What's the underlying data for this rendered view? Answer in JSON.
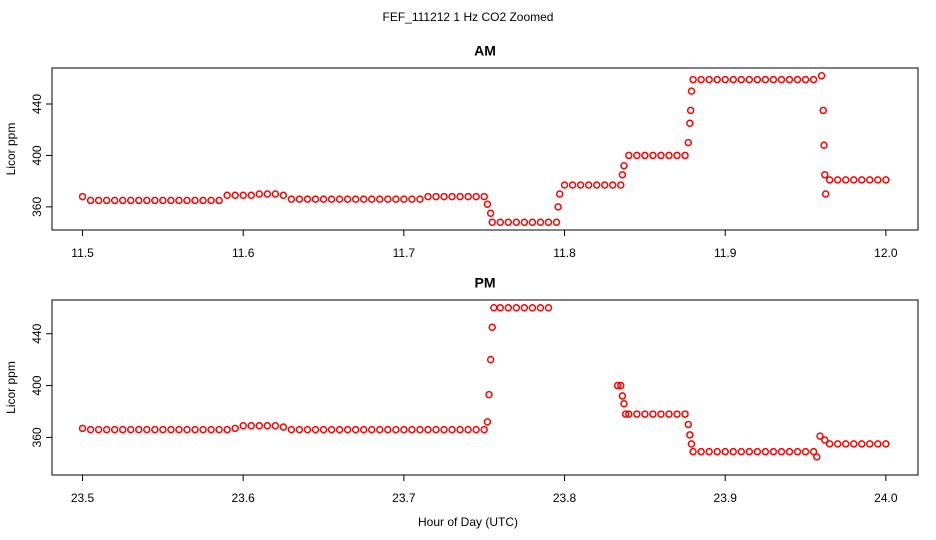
{
  "title": "FEF_111212  1 Hz CO2 Zoomed",
  "xlabel": "Hour of Day (UTC)",
  "chart_data": [
    {
      "type": "scatter",
      "title": "AM",
      "ylabel": "Licor ppm",
      "color": "#ff0000",
      "xlim": [
        11.481,
        12.02
      ],
      "ylim": [
        342,
        468
      ],
      "xticks": [
        11.5,
        11.6,
        11.7,
        11.8,
        11.9,
        {
          "value": 12,
          "label": "12.0"
        }
      ],
      "yticks": [
        360,
        400,
        440
      ],
      "x": [
        11.5,
        11.505,
        11.51,
        11.515,
        11.52,
        11.525,
        11.53,
        11.535,
        11.54,
        11.545,
        11.55,
        11.555,
        11.56,
        11.565,
        11.57,
        11.575,
        11.58,
        11.585,
        11.59,
        11.595,
        11.6,
        11.605,
        11.61,
        11.615,
        11.62,
        11.625,
        11.63,
        11.635,
        11.64,
        11.645,
        11.65,
        11.655,
        11.66,
        11.665,
        11.67,
        11.675,
        11.68,
        11.685,
        11.69,
        11.695,
        11.7,
        11.705,
        11.71,
        11.715,
        11.72,
        11.725,
        11.73,
        11.735,
        11.74,
        11.745,
        11.75,
        11.752,
        11.754,
        11.755,
        11.76,
        11.765,
        11.77,
        11.775,
        11.78,
        11.785,
        11.79,
        11.795,
        11.796,
        11.797,
        11.8,
        11.805,
        11.81,
        11.815,
        11.82,
        11.825,
        11.83,
        11.835,
        11.836,
        11.837,
        11.84,
        11.845,
        11.85,
        11.855,
        11.86,
        11.865,
        11.87,
        11.875,
        11.877,
        11.878,
        11.8785,
        11.879,
        11.88,
        11.885,
        11.89,
        11.895,
        11.9,
        11.905,
        11.91,
        11.915,
        11.92,
        11.925,
        11.93,
        11.935,
        11.94,
        11.945,
        11.95,
        11.955,
        11.96,
        11.961,
        11.9615,
        11.962,
        11.9625,
        11.965,
        11.97,
        11.975,
        11.98,
        11.985,
        11.99,
        11.995,
        12.0
      ],
      "values": [
        368,
        365,
        365,
        365,
        365,
        365,
        365,
        365,
        365,
        365,
        365,
        365,
        365,
        365,
        365,
        365,
        365,
        365,
        369,
        369,
        369,
        369,
        370,
        370,
        370,
        369,
        366,
        366,
        366,
        366,
        366,
        366,
        366,
        366,
        366,
        366,
        366,
        366,
        366,
        366,
        366,
        366,
        366,
        368,
        368,
        368,
        368,
        368,
        368,
        368,
        368,
        362,
        355,
        348,
        348,
        348,
        348,
        348,
        348,
        348,
        348,
        348,
        360,
        370,
        377,
        377,
        377,
        377,
        377,
        377,
        377,
        377,
        385,
        392,
        400,
        400,
        400,
        400,
        400,
        400,
        400,
        400,
        410,
        425,
        435,
        450,
        459,
        459,
        459,
        459,
        459,
        459,
        459,
        459,
        459,
        459,
        459,
        459,
        459,
        459,
        459,
        459,
        462,
        435,
        408,
        385,
        370,
        381,
        381,
        381,
        381,
        381,
        381,
        381,
        381
      ]
    },
    {
      "type": "scatter",
      "title": "PM",
      "ylabel": "Licor ppm",
      "color": "#ff0000",
      "xlim": [
        23.481,
        24.02
      ],
      "ylim": [
        331,
        466
      ],
      "xticks": [
        23.5,
        23.6,
        23.7,
        23.8,
        23.9,
        {
          "value": 24,
          "label": "24.0"
        }
      ],
      "yticks": [
        360,
        400,
        440
      ],
      "x": [
        23.5,
        23.505,
        23.51,
        23.515,
        23.52,
        23.525,
        23.53,
        23.535,
        23.54,
        23.545,
        23.55,
        23.555,
        23.56,
        23.565,
        23.57,
        23.575,
        23.58,
        23.585,
        23.59,
        23.595,
        23.6,
        23.605,
        23.61,
        23.615,
        23.62,
        23.625,
        23.63,
        23.635,
        23.64,
        23.645,
        23.65,
        23.655,
        23.66,
        23.665,
        23.67,
        23.675,
        23.68,
        23.685,
        23.69,
        23.695,
        23.7,
        23.705,
        23.71,
        23.715,
        23.72,
        23.725,
        23.73,
        23.735,
        23.74,
        23.745,
        23.75,
        23.752,
        23.753,
        23.754,
        23.755,
        23.756,
        23.76,
        23.765,
        23.77,
        23.775,
        23.78,
        23.785,
        23.79,
        23.833,
        23.835,
        23.836,
        23.837,
        23.838,
        23.84,
        23.845,
        23.85,
        23.855,
        23.86,
        23.865,
        23.87,
        23.875,
        23.877,
        23.878,
        23.879,
        23.88,
        23.885,
        23.89,
        23.895,
        23.9,
        23.905,
        23.91,
        23.915,
        23.92,
        23.925,
        23.93,
        23.935,
        23.94,
        23.945,
        23.95,
        23.955,
        23.957,
        23.959,
        23.962,
        23.965,
        23.97,
        23.975,
        23.98,
        23.985,
        23.99,
        23.995,
        24.0
      ],
      "values": [
        367,
        366,
        366,
        366,
        366,
        366,
        366,
        366,
        366,
        366,
        366,
        366,
        366,
        366,
        366,
        366,
        366,
        366,
        366,
        367,
        369,
        369,
        369,
        369,
        369,
        368,
        366,
        366,
        366,
        366,
        366,
        366,
        366,
        366,
        366,
        366,
        366,
        366,
        366,
        366,
        366,
        366,
        366,
        366,
        366,
        366,
        366,
        366,
        366,
        366,
        366,
        372,
        393,
        420,
        445,
        460,
        460,
        460,
        460,
        460,
        460,
        460,
        460,
        400,
        400,
        392,
        386,
        378,
        378,
        378,
        378,
        378,
        378,
        378,
        378,
        378,
        370,
        362,
        355,
        349,
        349,
        349,
        349,
        349,
        349,
        349,
        349,
        349,
        349,
        349,
        349,
        349,
        349,
        349,
        349,
        345,
        361,
        358,
        355,
        355,
        355,
        355,
        355,
        355,
        355,
        355
      ]
    }
  ]
}
